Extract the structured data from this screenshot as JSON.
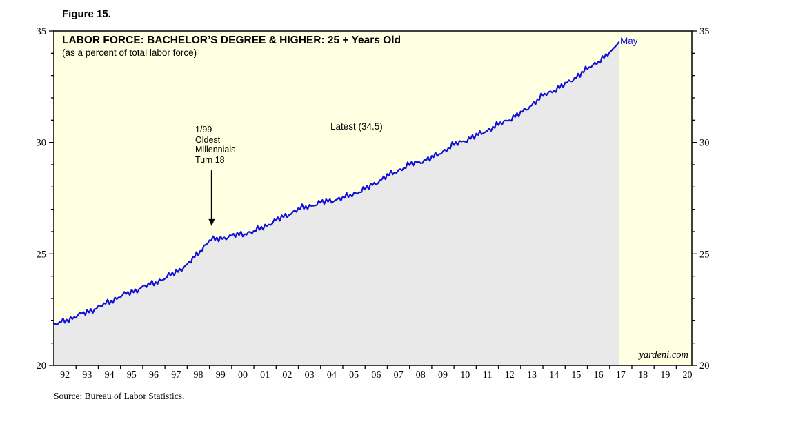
{
  "figure_label": "Figure 15.",
  "chart_data": {
    "type": "line",
    "title": "LABOR FORCE: BACHELOR’S DEGREE & HIGHER: 25 + Years Old",
    "subtitle": "(as a percent of total labor force)",
    "latest_text": "Latest (34.5)",
    "branding": "yardeni.com",
    "source": "Source: Bureau of Labor Statistics.",
    "x_range": [
      1992,
      2020.7
    ],
    "ylim": [
      20,
      35
    ],
    "yticks": [
      20,
      25,
      30,
      35
    ],
    "y_minor_step": 1,
    "xtick_labels": [
      "92",
      "93",
      "94",
      "95",
      "96",
      "97",
      "98",
      "99",
      "00",
      "01",
      "02",
      "03",
      "04",
      "05",
      "06",
      "07",
      "08",
      "09",
      "10",
      "11",
      "12",
      "13",
      "14",
      "15",
      "16",
      "17",
      "18",
      "19",
      "20"
    ],
    "series": [
      {
        "name": "Labor force with bachelor's degree & higher, 25+ years old (% of total labor force)",
        "anchors_x": [
          1992,
          1993,
          1994,
          1995,
          1996,
          1997,
          1998,
          1999,
          2000,
          2001,
          2002,
          2003,
          2004,
          2005,
          2006,
          2007,
          2008,
          2009,
          2010,
          2011,
          2012,
          2013,
          2014,
          2015,
          2016,
          2017,
          2017.417
        ],
        "anchors_y": [
          21.8,
          22.2,
          22.6,
          23.1,
          23.5,
          23.9,
          24.5,
          25.6,
          25.8,
          26.0,
          26.5,
          27.0,
          27.3,
          27.5,
          27.9,
          28.5,
          29.0,
          29.3,
          29.9,
          30.3,
          30.8,
          31.3,
          32.1,
          32.6,
          33.3,
          34.0,
          34.5
        ]
      }
    ],
    "latest": {
      "x": 2017.417,
      "value": 34.5,
      "label": "May"
    },
    "annotation": {
      "lines": [
        "1/99",
        "Oldest",
        "Millennials",
        "Turn 18"
      ],
      "x": 1999.1,
      "value_from": 28.75,
      "value_to": 26.25
    },
    "colors": {
      "line": "#1010d8",
      "plot_bg": "#ffffe1",
      "area_fill": "#e9e9e9",
      "border": "#000000"
    },
    "legend": "none",
    "grid": "off"
  }
}
